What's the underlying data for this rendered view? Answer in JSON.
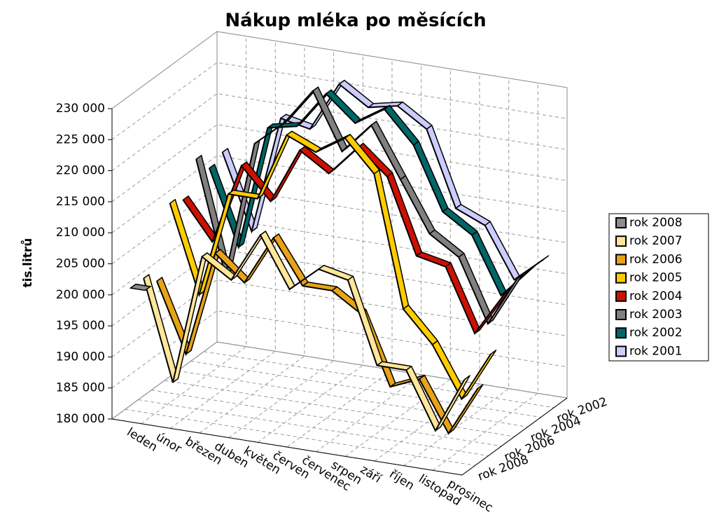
{
  "chart_data": {
    "type": "line3d",
    "title": "Nákup mléka po měsících",
    "y_label": "tis.litrů",
    "categories": [
      "leden",
      "únor",
      "březen",
      "duben",
      "květen",
      "červen",
      "červenec",
      "srpen",
      "září",
      "říjen",
      "listopad",
      "prosinec"
    ],
    "depth_labels": [
      null,
      "rok 2002",
      null,
      "rok 2004",
      null,
      "rok 2006",
      null,
      "rok 2008"
    ],
    "ylim": [
      180000,
      230000
    ],
    "yticks": [
      {
        "value": 180000,
        "label": "180 000"
      },
      {
        "value": 185000,
        "label": "185 000"
      },
      {
        "value": 190000,
        "label": "190 000"
      },
      {
        "value": 195000,
        "label": "195 000"
      },
      {
        "value": 200000,
        "label": "200 000"
      },
      {
        "value": 205000,
        "label": "205 000"
      },
      {
        "value": 210000,
        "label": "210 000"
      },
      {
        "value": 215000,
        "label": "215 000"
      },
      {
        "value": 220000,
        "label": "220 000"
      },
      {
        "value": 225000,
        "label": "225 000"
      },
      {
        "value": 230000,
        "label": "230 000"
      }
    ],
    "grid": true,
    "legend": "right",
    "series": [
      {
        "name": "rok 2001",
        "color": "#ccccff",
        "values": [
          212000,
          200000,
          219000,
          218000,
          226000,
          223000,
          224000,
          221000,
          209000,
          207000,
          199000,
          203000
        ]
      },
      {
        "name": "rok 2002",
        "color": "#006666",
        "values": [
          211000,
          199000,
          219000,
          220000,
          226000,
          222000,
          225000,
          220000,
          210000,
          207000,
          198000,
          203000
        ]
      },
      {
        "name": "rok 2003",
        "color": "#808080",
        "values": [
          214000,
          196000,
          218000,
          222000,
          228000,
          219000,
          224000,
          216000,
          208000,
          205000,
          195000,
          203000
        ]
      },
      {
        "name": "rok 2004",
        "color": "#cc1100",
        "values": [
          209000,
          203000,
          216000,
          211000,
          220000,
          217000,
          222000,
          218000,
          206000,
          205000,
          195000,
          202000
        ]
      },
      {
        "name": "rok 2005",
        "color": "#ffcc00",
        "values": [
          210000,
          196000,
          213000,
          213000,
          224000,
          222000,
          225000,
          220000,
          199000,
          194000,
          186000,
          194000
        ]
      },
      {
        "name": "rok 2006",
        "color": "#e8a317",
        "values": [
          199000,
          188000,
          205000,
          201000,
          209000,
          202000,
          202000,
          199000,
          188000,
          190000,
          182000,
          190000
        ]
      },
      {
        "name": "rok 2007",
        "color": "#ffe699",
        "values": [
          201000,
          185000,
          206000,
          203000,
          211000,
          203000,
          207000,
          206000,
          193000,
          193000,
          184000,
          193000
        ]
      },
      {
        "name": "rok 2008",
        "color": "#8c8c8c",
        "values": [
          201000,
          null,
          null,
          null,
          null,
          null,
          null,
          null,
          null,
          null,
          null,
          null
        ]
      }
    ]
  }
}
